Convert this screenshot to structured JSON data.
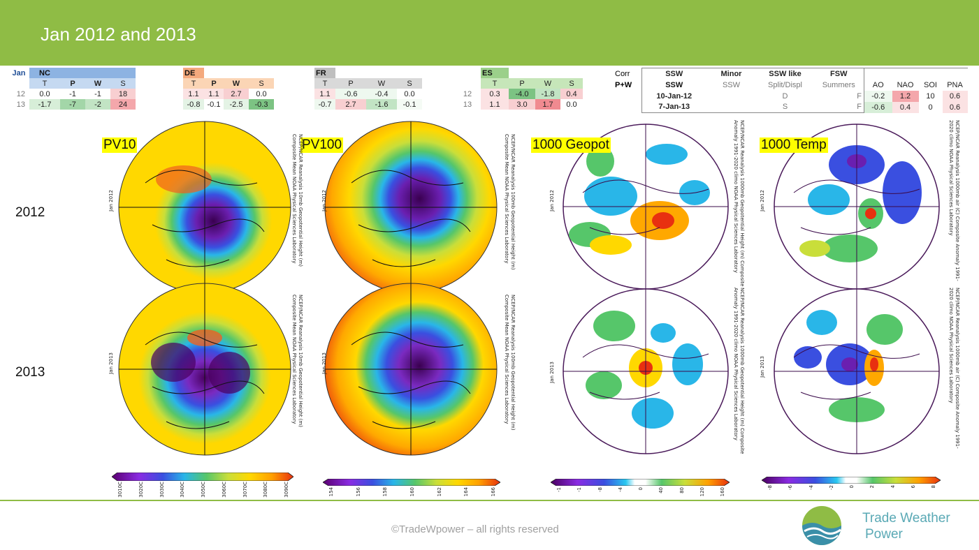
{
  "header": {
    "title": "Jan 2012 and 2013"
  },
  "tables": [
    {
      "key": "nc",
      "corner": "Jan",
      "name": "NC",
      "cols": [
        "T",
        "P",
        "W",
        "S"
      ],
      "rows": [
        {
          "label": "12",
          "vals": [
            "0.0",
            "-1",
            "-1",
            "18"
          ]
        },
        {
          "label": "13",
          "vals": [
            "-1.7",
            "-7",
            "-2",
            "24"
          ]
        }
      ],
      "header_color": "#8db3e2",
      "sub_color": "#c5d9f1"
    },
    {
      "key": "de",
      "corner": "",
      "name": "DE",
      "cols": [
        "T",
        "P",
        "W",
        "S"
      ],
      "rows": [
        {
          "label": "",
          "vals": [
            "1.1",
            "1.1",
            "2.7",
            "0.0"
          ]
        },
        {
          "label": "",
          "vals": [
            "-0.8",
            "-0.1",
            "-2.5",
            "-0.3"
          ]
        }
      ],
      "header_color": "#f4a97d",
      "sub_color": "#fbd5b5"
    },
    {
      "key": "fr",
      "corner": "",
      "name": "FR",
      "cols": [
        "T",
        "P",
        "W",
        "S"
      ],
      "rows": [
        {
          "label": "",
          "vals": [
            "1.1",
            "-0.6",
            "-0.4",
            "0.0"
          ]
        },
        {
          "label": "",
          "vals": [
            "-0.7",
            "2.7",
            "-1.6",
            "-0.1"
          ]
        }
      ],
      "header_color": "#bfbfbf",
      "sub_color": "#d9d9d9"
    },
    {
      "key": "es",
      "corner": "",
      "name": "ES",
      "cols": [
        "T",
        "P",
        "W",
        "S"
      ],
      "rows": [
        {
          "label": "12",
          "vals": [
            "0.3",
            "-4.0",
            "-1.8",
            "0.4"
          ]
        },
        {
          "label": "13",
          "vals": [
            "1.1",
            "3.0",
            "1.7",
            "0.0"
          ]
        }
      ],
      "header_color": "#9bd08a",
      "sub_color": "#c6e6b9"
    }
  ],
  "corr": {
    "line1": "Corr",
    "line2": "P+W"
  },
  "ssw_table": {
    "heads": [
      "SSW",
      "Minor",
      "SSW like",
      "FSW",
      "",
      "",
      "",
      ""
    ],
    "subs": [
      "",
      "SSW",
      "Split/Displ",
      "Summers",
      "AO",
      "NAO",
      "SOI",
      "PNA"
    ],
    "rows": [
      [
        "10-Jan-12",
        "",
        "D",
        "F",
        "-0.2",
        "1.2",
        "10",
        "0.6"
      ],
      [
        "7-Jan-13",
        "",
        "S",
        "F",
        "-0.6",
        "0.4",
        "0",
        "0.6"
      ]
    ]
  },
  "panels": [
    {
      "label": "PV10",
      "caption": "NCEP/NCAR Reanalysis 10mb Geopotential Height (m) Composite Mean NOAA Physical Sciences Laboratory",
      "ticks": [
        "3010C",
        "3020C",
        "3030C",
        "3040C",
        "3050C",
        "3060C",
        "3070C",
        "3080C",
        "3090C"
      ]
    },
    {
      "label": "PV100",
      "caption": "NCEP/NCAR Reanalysis 100mb Geopotential Height (m) Composite Mean NOAA Physical Sciences Laboratory",
      "ticks": [
        "154",
        "156",
        "158",
        "160",
        "162",
        "164",
        "166"
      ]
    },
    {
      "label": "1000 Geopot",
      "caption": "NCEP/NCAR Reanalysis 1000mb Geopotential Height (m) Composite Anomaly 1991-2020 climo NOAA Physical Sciences Laboratory",
      "ticks": [
        "-1",
        "-1",
        "-8",
        "-4",
        "0",
        "40",
        "80",
        "120",
        "160"
      ]
    },
    {
      "label": "1000 Temp",
      "caption": "NCEP/NCAR Reanalysis 1000mb air (C) Composite Anomaly 1991-2020 climo NOAA Physical Sciences Laboratory",
      "ticks": [
        "-8",
        "-6",
        "-4",
        "-2",
        "0",
        "2",
        "4",
        "6",
        "8"
      ]
    }
  ],
  "years": [
    {
      "label": "2012",
      "map_label": "Jan 2012"
    },
    {
      "label": "2013",
      "map_label": "Jan 2013"
    }
  ],
  "footer": {
    "copyright": "©TradeWpower – all rights reserved",
    "brand_line1": "Trade Weather",
    "brand_line2": "Power"
  },
  "colors": {
    "accent": "#8fbc45",
    "brand": "#5aa9b5"
  }
}
